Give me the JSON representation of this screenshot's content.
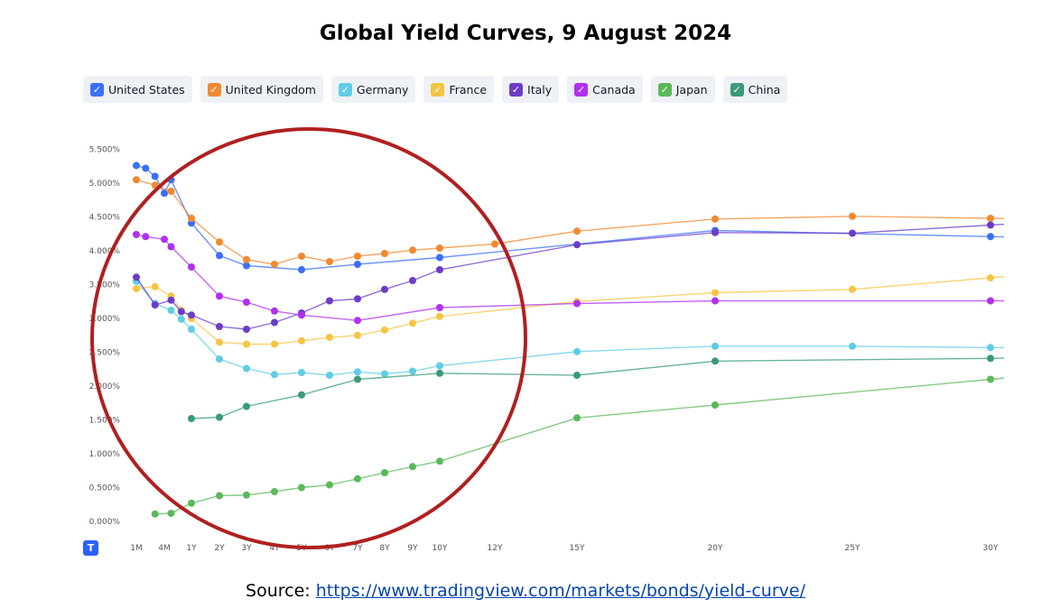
{
  "title": "Global Yield Curves, 9 August 2024",
  "legend": [
    {
      "label": "United States",
      "color": "#3a6ff7"
    },
    {
      "label": "United Kingdom",
      "color": "#f08a30"
    },
    {
      "label": "Germany",
      "color": "#5fcde4"
    },
    {
      "label": "France",
      "color": "#f5c542"
    },
    {
      "label": "Italy",
      "color": "#6a3dc8"
    },
    {
      "label": "Canada",
      "color": "#b030f0"
    },
    {
      "label": "Japan",
      "color": "#5cb85c"
    },
    {
      "label": "China",
      "color": "#3a9a7a"
    }
  ],
  "logo_text": "T",
  "source": {
    "prefix": "Source: ",
    "link": "https://www.tradingview.com/markets/bonds/yield-curve/"
  },
  "annotation": {
    "shape": "circle",
    "color": "#b02020"
  },
  "chart_data": {
    "type": "line",
    "title": "Global Yield Curves, 9 August 2024",
    "xlabel": "",
    "ylabel": "",
    "ylim": [
      0,
      5.5
    ],
    "y_ticks": [
      "0.000%",
      "0.500%",
      "1.000%",
      "1.500%",
      "2.000%",
      "2.500%",
      "3.000%",
      "3.500%",
      "4.000%",
      "4.500%",
      "5.000%",
      "5.500%"
    ],
    "x_ticks": [
      {
        "label": "1M",
        "months": 1
      },
      {
        "label": "4M",
        "months": 4
      },
      {
        "label": "1Y",
        "months": 12
      },
      {
        "label": "2Y",
        "months": 24
      },
      {
        "label": "3Y",
        "months": 36
      },
      {
        "label": "4Y",
        "months": 48
      },
      {
        "label": "5Y",
        "months": 60
      },
      {
        "label": "6Y",
        "months": 72
      },
      {
        "label": "7Y",
        "months": 84
      },
      {
        "label": "8Y",
        "months": 96
      },
      {
        "label": "9Y",
        "months": 108
      },
      {
        "label": "10Y",
        "months": 120
      },
      {
        "label": "12Y",
        "months": 144
      },
      {
        "label": "15Y",
        "months": 180
      },
      {
        "label": "20Y",
        "months": 240
      },
      {
        "label": "25Y",
        "months": 300
      },
      {
        "label": "30Y",
        "months": 360
      }
    ],
    "x_units": "months to maturity",
    "legend_position": "top",
    "grid": false,
    "series": [
      {
        "name": "United States",
        "color": "#3a6ff7",
        "x": [
          1,
          2,
          3,
          4,
          6,
          12,
          24,
          36,
          60,
          84,
          120,
          240,
          360
        ],
        "y": [
          5.26,
          5.22,
          5.1,
          4.85,
          5.05,
          4.41,
          3.93,
          3.78,
          3.72,
          3.8,
          3.9,
          4.3,
          4.21
        ]
      },
      {
        "name": "United Kingdom",
        "color": "#f08a30",
        "x": [
          1,
          3,
          6,
          12,
          24,
          36,
          48,
          60,
          72,
          84,
          96,
          108,
          120,
          144,
          180,
          240,
          300,
          360
        ],
        "y": [
          5.05,
          4.97,
          4.88,
          4.48,
          4.13,
          3.87,
          3.8,
          3.92,
          3.84,
          3.92,
          3.96,
          4.01,
          4.04,
          4.1,
          4.29,
          4.47,
          4.51,
          4.48
        ]
      },
      {
        "name": "Germany",
        "color": "#5fcde4",
        "x": [
          1,
          3,
          6,
          9,
          12,
          24,
          36,
          48,
          60,
          72,
          84,
          96,
          108,
          120,
          180,
          240,
          300,
          360
        ],
        "y": [
          3.55,
          3.22,
          3.12,
          2.99,
          2.84,
          2.4,
          2.26,
          2.17,
          2.2,
          2.16,
          2.21,
          2.18,
          2.22,
          2.3,
          2.51,
          2.59,
          2.59,
          2.57
        ]
      },
      {
        "name": "France",
        "color": "#f5c542",
        "x": [
          1,
          3,
          6,
          9,
          12,
          24,
          36,
          48,
          60,
          72,
          84,
          96,
          108,
          120,
          180,
          240,
          300,
          360
        ],
        "y": [
          3.44,
          3.47,
          3.33,
          3.12,
          3.0,
          2.65,
          2.62,
          2.62,
          2.67,
          2.72,
          2.75,
          2.83,
          2.93,
          3.03,
          3.25,
          3.38,
          3.43,
          3.6
        ]
      },
      {
        "name": "Italy",
        "color": "#6a3dc8",
        "x": [
          1,
          3,
          6,
          9,
          12,
          24,
          36,
          48,
          60,
          72,
          84,
          96,
          108,
          120,
          180,
          240,
          300,
          360
        ],
        "y": [
          3.61,
          3.2,
          3.27,
          3.1,
          3.05,
          2.88,
          2.84,
          2.94,
          3.08,
          3.26,
          3.29,
          3.43,
          3.56,
          3.72,
          4.09,
          4.27,
          4.26,
          4.38
        ]
      },
      {
        "name": "Canada",
        "color": "#b030f0",
        "x": [
          1,
          2,
          4,
          6,
          12,
          24,
          36,
          48,
          60,
          84,
          120,
          180,
          240,
          360
        ],
        "y": [
          4.24,
          4.21,
          4.17,
          4.06,
          3.76,
          3.33,
          3.24,
          3.11,
          3.05,
          2.97,
          3.16,
          3.22,
          3.26,
          3.26
        ]
      },
      {
        "name": "Japan",
        "color": "#5cb85c",
        "x": [
          3,
          6,
          12,
          24,
          36,
          48,
          60,
          72,
          84,
          96,
          108,
          120,
          180,
          240,
          360
        ],
        "y": [
          0.11,
          0.12,
          0.27,
          0.38,
          0.39,
          0.44,
          0.5,
          0.54,
          0.63,
          0.72,
          0.81,
          0.89,
          1.53,
          1.72,
          2.1
        ]
      },
      {
        "name": "China",
        "color": "#3a9a7a",
        "x": [
          12,
          24,
          36,
          60,
          84,
          120,
          180,
          240,
          360
        ],
        "y": [
          1.52,
          1.54,
          1.7,
          1.87,
          2.1,
          2.19,
          2.16,
          2.37,
          2.41
        ]
      }
    ]
  }
}
